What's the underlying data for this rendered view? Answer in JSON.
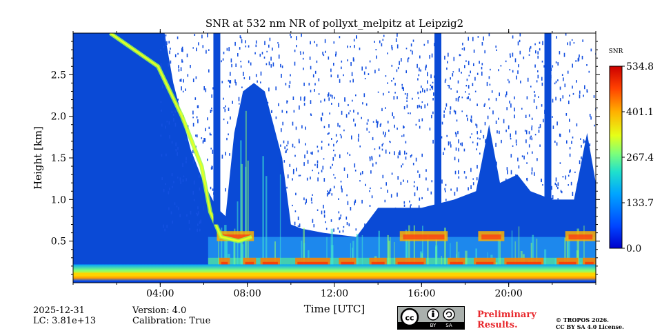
{
  "chart_data": {
    "type": "heatmap",
    "title": "SNR at 532 nm NR of pollyxt_melpitz at Leipzig2",
    "xlabel": "Time [UTC]",
    "ylabel": "Height [km]",
    "xlim": [
      0,
      24
    ],
    "ylim": [
      0,
      3.0
    ],
    "x_ticks": [
      {
        "value": 4,
        "label": "04:00"
      },
      {
        "value": 8,
        "label": "08:00"
      },
      {
        "value": 12,
        "label": "12:00"
      },
      {
        "value": 16,
        "label": "16:00"
      },
      {
        "value": 20,
        "label": "20:00"
      }
    ],
    "y_ticks": [
      {
        "value": 0.5,
        "label": "0.5"
      },
      {
        "value": 1.0,
        "label": "1.0"
      },
      {
        "value": 1.5,
        "label": "1.5"
      },
      {
        "value": 2.0,
        "label": "2.0"
      },
      {
        "value": 2.5,
        "label": "2.5"
      }
    ],
    "colorbar": {
      "label": "SNR",
      "min": 0.0,
      "max": 534.8,
      "ticks": [
        "0.0",
        "133.7",
        "267.4",
        "401.1",
        "534.8"
      ],
      "colormap": "jet"
    },
    "features": {
      "surface_layer_height_km": 0.1,
      "aerosol_layer_top_km": 0.55,
      "descending_layer": [
        [
          1.7,
          3.0
        ],
        [
          3.9,
          2.6
        ],
        [
          5.0,
          2.0
        ],
        [
          5.9,
          1.4
        ],
        [
          6.3,
          0.85
        ],
        [
          6.8,
          0.55
        ],
        [
          7.6,
          0.5
        ],
        [
          8.2,
          0.55
        ]
      ],
      "vertical_stripes_hours": [
        6.6,
        16.75,
        21.8
      ],
      "cloud_peak_hours": [
        8.0,
        9.3,
        19.1,
        23.8
      ]
    }
  },
  "meta": {
    "date": "2025-12-31",
    "lc": "LC: 3.81e+13",
    "version": "Version: 4.0",
    "calibration": "Calibration: True"
  },
  "badge": {
    "preliminary_line1": "Preliminary",
    "preliminary_line2": "Results.",
    "copyright_line1": "© TROPOS 2026.",
    "copyright_line2": "CC BY SA 4.0 License.",
    "cc_by": "BY",
    "cc_sa": "SA"
  }
}
